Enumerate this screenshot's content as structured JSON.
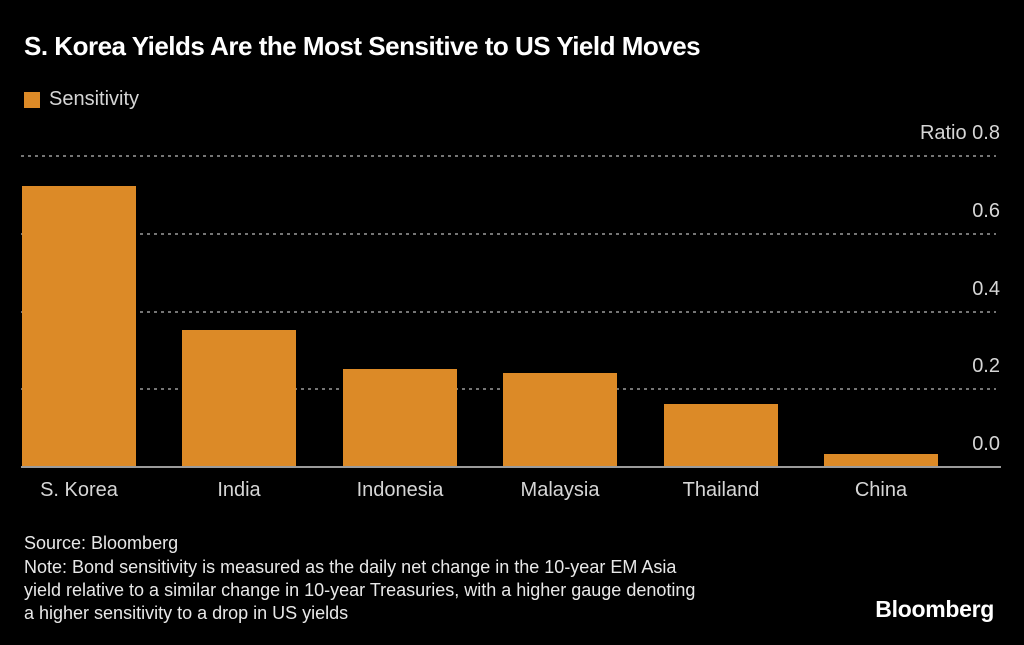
{
  "title": "S. Korea Yields Are the Most Sensitive to US Yield Moves",
  "legend": {
    "label": "Sensitivity",
    "color": "#DC8A27"
  },
  "chart_data": {
    "type": "bar",
    "title": "S. Korea Yields Are the Most Sensitive to US Yield Moves",
    "categories": [
      "S. Korea",
      "India",
      "Indonesia",
      "Malaysia",
      "Thailand",
      "China"
    ],
    "values": [
      0.72,
      0.35,
      0.25,
      0.24,
      0.16,
      0.03
    ],
    "series_name": "Sensitivity",
    "ylabel": "Ratio",
    "xlabel": "",
    "ylim": [
      0,
      0.8
    ],
    "yticks": [
      0.8,
      0.6,
      0.4,
      0.2,
      0.0
    ],
    "grid": "horizontal dotted, tick labels on right, zero baseline solid",
    "legend_position": "top-left",
    "bar_color": "#DC8A27",
    "background_color": "#000000",
    "text_color": "#d6d6d6"
  },
  "footer": {
    "source": "Source: Bloomberg",
    "note": "Note: Bond sensitivity is measured as the daily net change in the 10-year EM Asia\nyield relative to a similar change in 10-year Treasuries, with a higher gauge denoting\na higher sensitivity to a drop in US yields",
    "logo": "Bloomberg"
  }
}
